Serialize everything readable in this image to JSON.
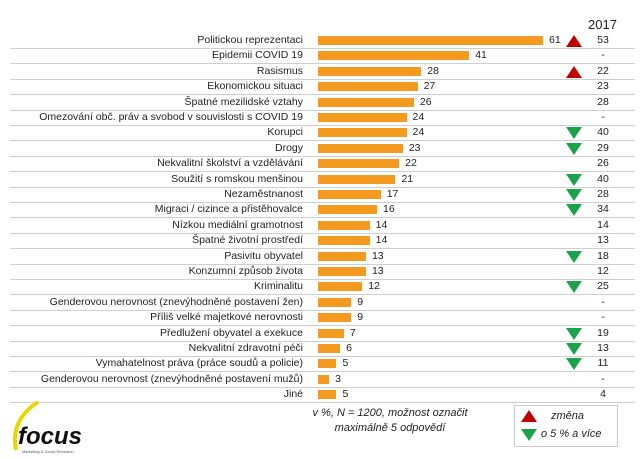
{
  "chart_data": {
    "type": "bar",
    "orientation": "horizontal",
    "unit": "%",
    "previous_year_label": "2017",
    "categories": [
      "Politickou reprezentaci",
      "Epidemii COVID 19",
      "Rasismus",
      "Ekonomickou situaci",
      "Špatné mezilidské vztahy",
      "Omezování obč. práv a svobod v souvislosti s COVID 19",
      "Korupci",
      "Drogy",
      "Nekvalitní školství a vzdělávání",
      "Soužití s romskou menšinou",
      "Nezaměstnanost",
      "Migraci / cizince a přistěhovalce",
      "Nízkou mediální gramotnost",
      "Špatné životní prostředí",
      "Pasivitu obyvatel",
      "Konzumní způsob života",
      "Kriminalitu",
      "Genderovou nerovnost (znevýhodněné postavení žen)",
      "Příliš velké majetkové nerovnosti",
      "Předlužení obyvatel a exekuce",
      "Nekvalitní zdravotní péči",
      "Vymahatelnost práva (práce soudů a policie)",
      "Genderovou nerovnost (znevýhodněné postavení mužů)",
      "Jiné"
    ],
    "values": [
      61,
      41,
      28,
      27,
      26,
      24,
      24,
      23,
      22,
      21,
      17,
      16,
      14,
      14,
      13,
      13,
      12,
      9,
      9,
      7,
      6,
      5,
      3,
      5
    ],
    "values_2017": [
      "53",
      "-",
      "22",
      "23",
      "28",
      "-",
      "40",
      "29",
      "26",
      "40",
      "28",
      "34",
      "14",
      "13",
      "18",
      "12",
      "25",
      "-",
      "-",
      "19",
      "13",
      "11",
      "-",
      "4"
    ],
    "change": [
      "up",
      "",
      "up",
      "",
      "",
      "",
      "down",
      "down",
      "",
      "down",
      "down",
      "down",
      "",
      "",
      "down",
      "",
      "down",
      "",
      "",
      "down",
      "down",
      "down",
      "",
      ""
    ],
    "xlim": [
      0,
      61
    ]
  },
  "note_line1": "v %, N = 1200, možnost označit",
  "note_line2": "maximálně 5 odpovědí",
  "legend": {
    "line1": "změna",
    "line2": "o 5 % a více"
  },
  "colors": {
    "bar": "#f39a1f",
    "up": "#c00000",
    "down": "#1aa34a"
  },
  "logo": {
    "name": "focus",
    "tagline": "Marketing & Social Research"
  }
}
